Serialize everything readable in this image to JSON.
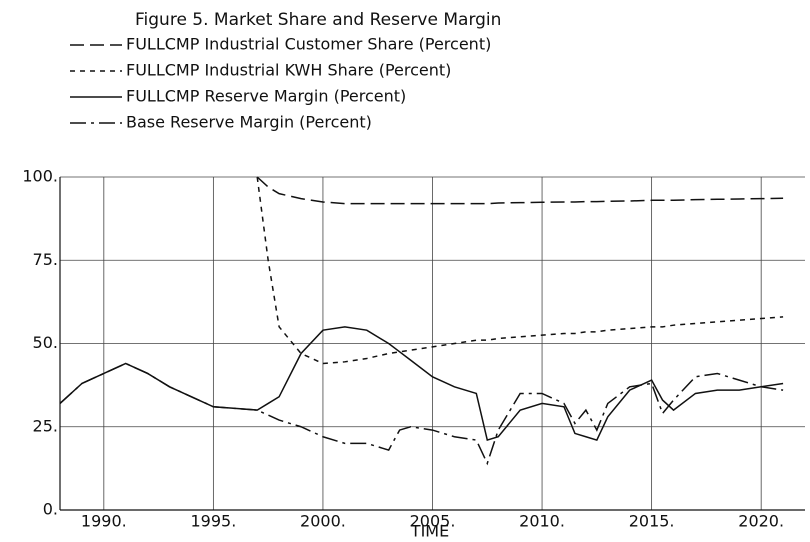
{
  "chart_data": {
    "type": "line",
    "title": "Figure 5.  Market Share and Reserve Margin",
    "x_label": "TIME",
    "x": [
      1988,
      1989,
      1990,
      1991,
      1992,
      1993,
      1994,
      1995,
      1996,
      1997,
      1997.5,
      1998,
      1999,
      2000,
      2001,
      2002,
      2003,
      2003.5,
      2004,
      2005,
      2006,
      2007,
      2007.5,
      2008,
      2009,
      2010,
      2011,
      2011.5,
      2012,
      2012.5,
      2013,
      2014,
      2015,
      2015.5,
      2016,
      2017,
      2018,
      2019,
      2020,
      2021
    ],
    "series": [
      {
        "name": "FULLCMP Industrial Customer Share (Percent)",
        "color": "#111111",
        "linestyle": "long-dash",
        "values": [
          null,
          null,
          null,
          null,
          null,
          null,
          null,
          null,
          null,
          100,
          97,
          95,
          93.5,
          92.5,
          92,
          92,
          92,
          92,
          92,
          92,
          92,
          92,
          92,
          92.2,
          92.3,
          92.4,
          92.5,
          92.5,
          92.6,
          92.6,
          92.7,
          92.8,
          93,
          93,
          93,
          93.2,
          93.3,
          93.4,
          93.5,
          93.6
        ]
      },
      {
        "name": "FULLCMP Industrial KWH Share (Percent)",
        "color": "#111111",
        "linestyle": "short-dash",
        "values": [
          null,
          null,
          null,
          null,
          null,
          null,
          null,
          null,
          null,
          100,
          75,
          55,
          47,
          44,
          44.5,
          45.5,
          47,
          47.5,
          48,
          49,
          50,
          51,
          51,
          51.5,
          52,
          52.5,
          53,
          53,
          53.5,
          53.5,
          54,
          54.5,
          55,
          55,
          55.5,
          56,
          56.5,
          57,
          57.5,
          58
        ]
      },
      {
        "name": "FULLCMP Reserve Margin (Percent)",
        "color": "#111111",
        "linestyle": "solid",
        "values": [
          32,
          38,
          41,
          44,
          41,
          37,
          34,
          31,
          30.5,
          30,
          32,
          34,
          47,
          54,
          55,
          54,
          50,
          47.5,
          45,
          40,
          37,
          35,
          21,
          22,
          30,
          32,
          31,
          23,
          22,
          21,
          28,
          36,
          39,
          33,
          30,
          35,
          36,
          36,
          37,
          38
        ]
      },
      {
        "name": "Base Reserve Margin (Percent)",
        "color": "#111111",
        "linestyle": "dash-dot",
        "values": [
          32,
          38,
          41,
          44,
          41,
          37,
          34,
          31,
          30.5,
          30,
          28.5,
          27,
          25,
          22,
          20,
          20,
          18,
          24,
          25,
          24,
          22,
          21,
          14,
          24,
          35,
          35,
          32,
          26,
          30,
          24,
          32,
          37,
          38,
          29,
          33,
          40,
          41,
          39,
          37,
          36
        ]
      }
    ],
    "xlim": [
      1988,
      2022
    ],
    "xticks": [
      {
        "value": 1990,
        "label": "1990."
      },
      {
        "value": 1995,
        "label": "1995."
      },
      {
        "value": 2000,
        "label": "2000."
      },
      {
        "value": 2005,
        "label": "2005."
      },
      {
        "value": 2010,
        "label": "2010."
      },
      {
        "value": 2015,
        "label": "2015."
      },
      {
        "value": 2020,
        "label": "2020."
      }
    ],
    "ylim": [
      0,
      100
    ],
    "yticks": [
      {
        "value": 0,
        "label": "0."
      },
      {
        "value": 25,
        "label": "25."
      },
      {
        "value": 50,
        "label": "50."
      },
      {
        "value": 75,
        "label": "75."
      },
      {
        "value": 100,
        "label": "100."
      }
    ],
    "grid": true
  }
}
